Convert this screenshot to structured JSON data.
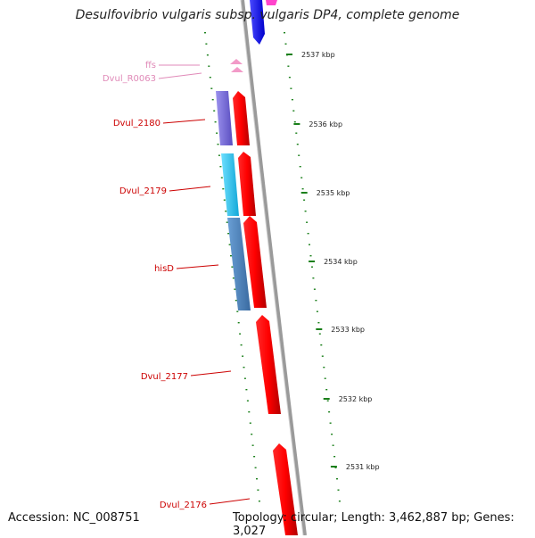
{
  "title": "Desulfovibrio vulgaris subsp. vulgaris DP4, complete genome",
  "accession": "Accession: NC_008751",
  "summary": "Topology: circular; Length: 3,462,887 bp; Genes: 3,027",
  "colors": {
    "backbone": "#8c8c8c",
    "gene_forward": "#ff0000",
    "gene_label": "#cc0000",
    "rna_label": "#e08ab8",
    "rna_mark": "#f29ac8",
    "tick": "#1a7f1a",
    "purple": "#7b6fd6",
    "cyan": "#25c6f2",
    "steel": "#4f86c0",
    "blue": "#1a1aff",
    "magenta": "#ff44cc"
  },
  "scale_labels": [
    "2537 kbp",
    "2536 kbp",
    "2535 kbp",
    "2534 kbp",
    "2533 kbp",
    "2532 kbp",
    "2531 kbp"
  ],
  "gene_labels": [
    "ffs",
    "Dvul_R0063",
    "Dvul_2180",
    "Dvul_2179",
    "hisD",
    "Dvul_2177",
    "Dvul_2176"
  ]
}
